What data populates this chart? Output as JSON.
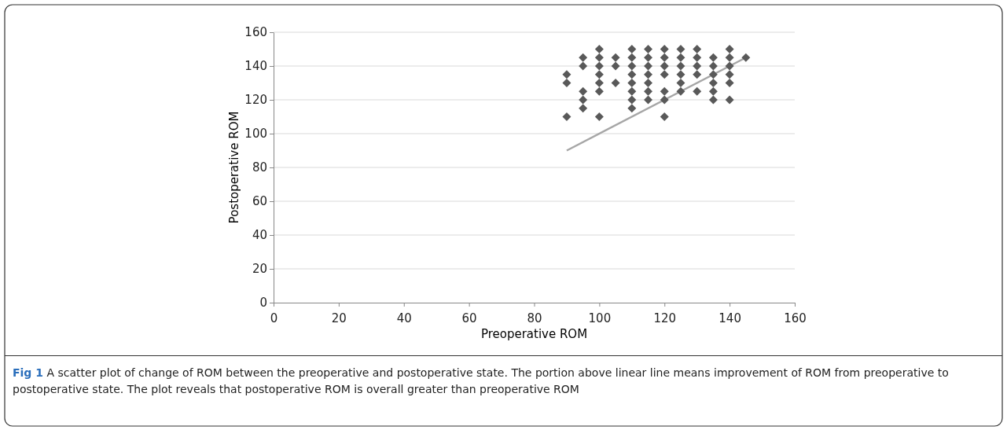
{
  "chart_data": {
    "type": "scatter",
    "xlabel": "Preoperative ROM",
    "ylabel": "Postoperative ROM",
    "annotations": [
      "Fig 1 A scatter plot of change of ROM between the preoperative and postoperative state. The portion above linear line means improvement of ROM from preoperative to postoperative state. The plot reveals that postoperative ROM is overall greater than preoperative ROM"
    ],
    "xlim": [
      0,
      160
    ],
    "ylim": [
      0,
      160
    ],
    "xticks": [
      0,
      20,
      40,
      60,
      80,
      100,
      120,
      140,
      160
    ],
    "yticks": [
      0,
      20,
      40,
      60,
      80,
      100,
      120,
      140,
      160
    ],
    "grid": "y",
    "series": [
      {
        "type": "line",
        "color": "#a6a6a6",
        "marker": "none",
        "line_style": "solid",
        "x": [
          90,
          145
        ],
        "values": [
          90,
          145
        ]
      },
      {
        "color": "#595959",
        "marker": "diamond",
        "x": [
          90,
          90,
          90,
          95,
          95,
          95,
          95,
          95,
          100,
          100,
          100,
          100,
          100,
          100,
          100,
          105,
          105,
          105,
          110,
          110,
          110,
          110,
          110,
          110,
          110,
          110,
          115,
          115,
          115,
          115,
          115,
          115,
          115,
          120,
          120,
          120,
          120,
          120,
          120,
          120,
          125,
          125,
          125,
          125,
          125,
          125,
          130,
          130,
          130,
          130,
          130,
          135,
          135,
          135,
          135,
          135,
          135,
          140,
          140,
          140,
          140,
          140,
          140,
          145
        ],
        "values": [
          135,
          130,
          110,
          145,
          140,
          125,
          120,
          115,
          150,
          145,
          140,
          135,
          130,
          125,
          110,
          145,
          140,
          130,
          150,
          145,
          140,
          135,
          130,
          125,
          120,
          115,
          150,
          145,
          140,
          135,
          130,
          125,
          120,
          150,
          145,
          140,
          135,
          125,
          120,
          110,
          150,
          145,
          140,
          135,
          130,
          125,
          150,
          145,
          140,
          135,
          125,
          145,
          140,
          135,
          130,
          125,
          120,
          150,
          145,
          140,
          135,
          130,
          120,
          145
        ]
      }
    ]
  }
}
